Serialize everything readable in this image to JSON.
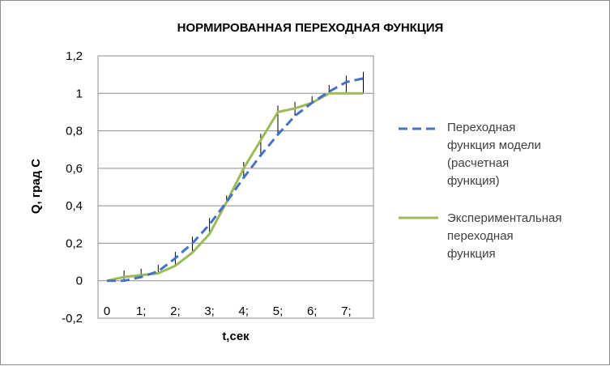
{
  "chart_data": {
    "type": "line",
    "title": "НОРМИРОВАННАЯ ПЕРЕХОДНАЯ ФУНКЦИЯ",
    "xlabel": "t,сек",
    "ylabel": "Q, град С",
    "ylim": [
      -0.2,
      1.2
    ],
    "yticks": [
      "-0,2",
      "0",
      "0,2",
      "0,4",
      "0,6",
      "0,8",
      "1",
      "1,2"
    ],
    "xtick_labels": [
      "0",
      "1;",
      "2;",
      "3;",
      "4;",
      "5;",
      "6;",
      "7;"
    ],
    "grid": true,
    "legend_position": "right",
    "x": [
      0,
      0.5,
      1,
      1.5,
      2,
      2.5,
      3,
      3.5,
      4,
      4.5,
      5,
      5.5,
      6,
      6.5,
      7,
      7.5
    ],
    "series": [
      {
        "name": "Переходная функция модели (расчетная функция)",
        "legend_lines": [
          "Переходная",
          "функция модели",
          "(расчетная",
          "функция)"
        ],
        "style": "dashed",
        "color": "#4472c4",
        "values": [
          0,
          0,
          0.02,
          0.05,
          0.12,
          0.2,
          0.3,
          0.42,
          0.55,
          0.67,
          0.78,
          0.88,
          0.95,
          1.01,
          1.06,
          1.08
        ]
      },
      {
        "name": "Экспериментальная переходная функция",
        "legend_lines": [
          "Экспериментальная",
          "переходная",
          "функция"
        ],
        "style": "solid",
        "color": "#9bbb59",
        "values": [
          0,
          0.02,
          0.03,
          0.04,
          0.08,
          0.15,
          0.25,
          0.42,
          0.6,
          0.75,
          0.9,
          0.92,
          0.95,
          1.0,
          1.0,
          1.0
        ]
      }
    ]
  }
}
